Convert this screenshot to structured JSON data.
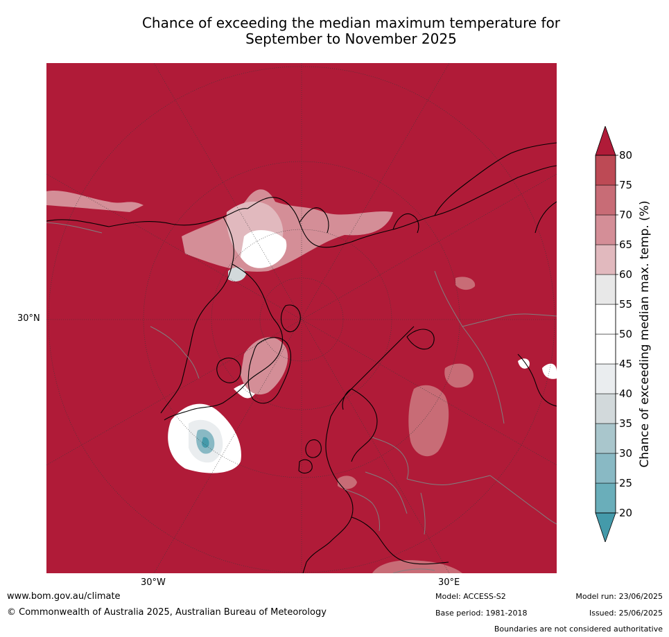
{
  "title_line1": "Chance of exceeding the median maximum temperature for",
  "title_line2": "September to November 2025",
  "lat_labels": [
    "30°N"
  ],
  "lon_labels": [
    "30°W",
    "30°E"
  ],
  "colorbar": {
    "label": "Chance of exceeding median max. temp. (%)",
    "ticks": [
      "20",
      "25",
      "30",
      "35",
      "40",
      "45",
      "50",
      "55",
      "60",
      "65",
      "70",
      "75",
      "80"
    ],
    "colors": [
      "#6aaeba",
      "#89b9c4",
      "#a9c6cc",
      "#d2d9db",
      "#eaedef",
      "#ffffff",
      "#ffffff",
      "#e8e8e8",
      "#e1b9be",
      "#d48e97",
      "#c86c76",
      "#bd4a55"
    ],
    "under_color": "#449aaa",
    "over_color": "#b01b38"
  },
  "map_colors": {
    "dominant": "#b01b38",
    "land_outline": "#000000",
    "border": "#808080",
    "grid": "#3a3a3a"
  },
  "footer": {
    "website": "www.bom.gov.au/climate",
    "copyright": "© Commonwealth of Australia 2025, Australian Bureau of Meteorology",
    "model": "Model: ACCESS-S2",
    "base_period": "Base period: 1981-2018",
    "model_run": "Model run: 23/06/2025",
    "issued": "Issued: 25/06/2025",
    "disclaimer": "Boundaries are not considered authoritative"
  }
}
